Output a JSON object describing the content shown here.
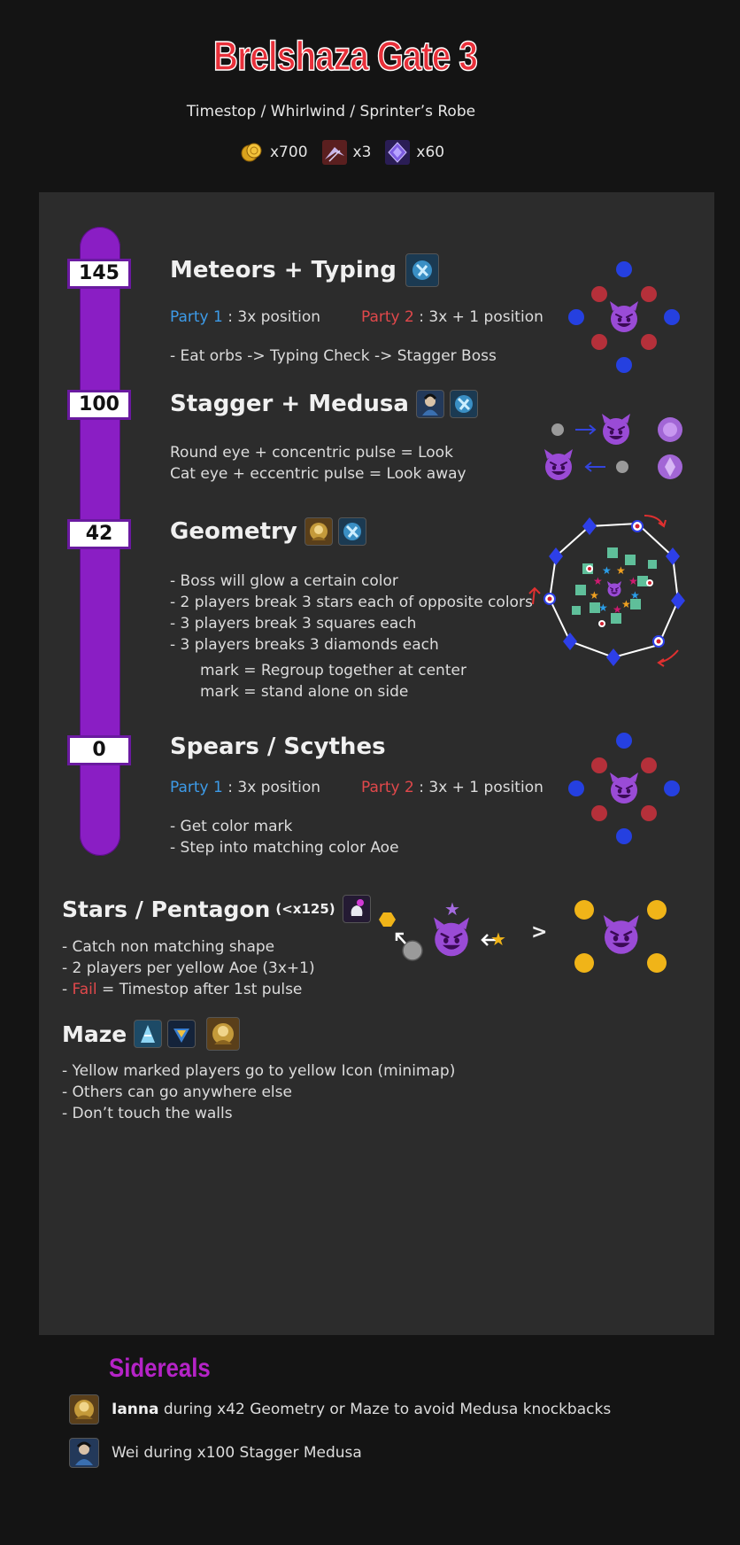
{
  "title": "Brelshaza Gate 3",
  "subtitle": "Timestop / Whirlwind / Sprinter’s Robe",
  "rewards": [
    {
      "icon": "gold-coin-icon",
      "amount": "x700"
    },
    {
      "icon": "crystal-wing-icon",
      "amount": "x3"
    },
    {
      "icon": "purple-stone-icon",
      "amount": "x60"
    }
  ],
  "mechanics": [
    {
      "hp": "145",
      "title": "Meteors + Typing",
      "party1_label": "Party 1",
      "party1_text": " : 3x position",
      "party2_label": "Party 2",
      "party2_text": " : 3x + 1 position",
      "lines": [
        "- Eat orbs -> Typing Check -> Stagger Boss"
      ]
    },
    {
      "hp": "100",
      "title": "Stagger + Medusa",
      "lines": [
        "Round eye + concentric pulse = Look",
        "Cat eye + eccentric pulse = Look away"
      ]
    },
    {
      "hp": "42",
      "title": "Geometry",
      "lines": [
        "- Boss will glow a certain color",
        "- 2 players break 3 stars each of opposite colors",
        "- 3 players break 3 squares each",
        "- 3 players breaks 3 diamonds each"
      ],
      "sublines": [
        "mark = Regroup together at center",
        "mark = stand alone on side"
      ]
    },
    {
      "hp": "0",
      "title": "Spears / Scythes",
      "party1_label": "Party 1",
      "party1_text": " : 3x position",
      "party2_label": "Party 2",
      "party2_text": " : 3x + 1 position",
      "lines": [
        "- Get color mark",
        "- Step into matching color Aoe"
      ]
    }
  ],
  "stars": {
    "title": "Stars / Pentagon",
    "suffix": "(<x125)",
    "lines": [
      "- Catch non matching shape",
      "- 2 players per yellow Aoe (3x+1)"
    ],
    "fail_label": "Fail",
    "fail_text": " = Timestop after 1st pulse",
    "arrow": ">"
  },
  "maze": {
    "title": "Maze",
    "lines": [
      "- Yellow marked players go to yellow Icon (minimap)",
      "- Others can go anywhere else",
      "- Don’t touch the walls"
    ]
  },
  "sidereals": {
    "title": "Sidereals",
    "rows": [
      {
        "name": "Ianna",
        "text": " during x42 Geometry or Maze to avoid Medusa knockbacks"
      },
      {
        "name": "",
        "text": "Wei during x100 Stagger Medusa"
      }
    ]
  },
  "colors": {
    "accent_red": "#e8303a",
    "hp_bar": "#8a1ec4",
    "party1": "#3d9be8",
    "party2": "#e0484b",
    "sidereals": "#b523c7"
  }
}
